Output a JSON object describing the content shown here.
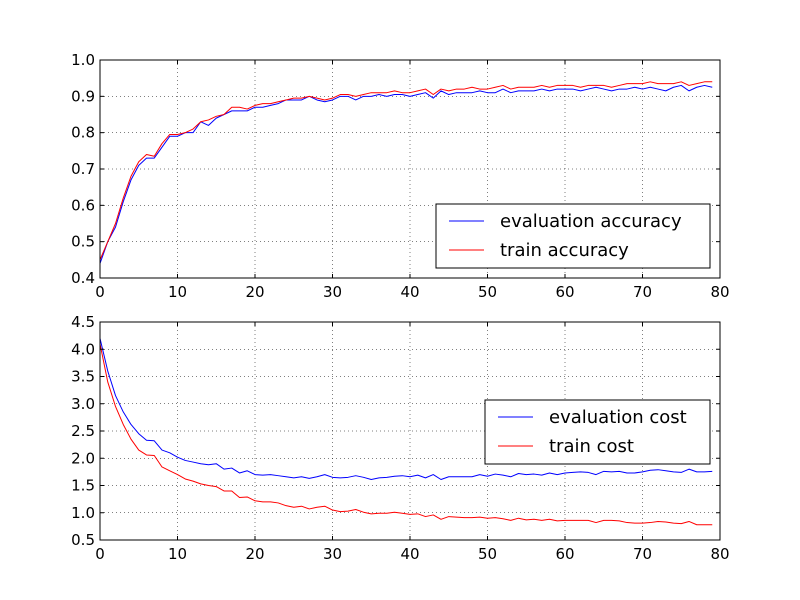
{
  "chart_data": [
    {
      "type": "line",
      "title": "",
      "xlabel": "",
      "ylabel": "",
      "xlim": [
        0,
        80
      ],
      "ylim": [
        0.4,
        1.0
      ],
      "xticks": [
        "0",
        "10",
        "20",
        "30",
        "40",
        "50",
        "60",
        "70",
        "80"
      ],
      "yticks": [
        "0.4",
        "0.5",
        "0.6",
        "0.7",
        "0.8",
        "0.9",
        "1.0"
      ],
      "grid": true,
      "legend_position": "lower-right",
      "series": [
        {
          "name": "evaluation accuracy",
          "color": "#0000ff",
          "x": [
            0,
            1,
            2,
            3,
            4,
            5,
            6,
            7,
            8,
            9,
            10,
            11,
            12,
            13,
            14,
            15,
            16,
            17,
            18,
            19,
            20,
            21,
            22,
            23,
            24,
            25,
            26,
            27,
            28,
            29,
            30,
            31,
            32,
            33,
            34,
            35,
            36,
            37,
            38,
            39,
            40,
            41,
            42,
            43,
            44,
            45,
            46,
            47,
            48,
            49,
            50,
            51,
            52,
            53,
            54,
            55,
            56,
            57,
            58,
            59,
            60,
            61,
            62,
            63,
            64,
            65,
            66,
            67,
            68,
            69,
            70,
            71,
            72,
            73,
            74,
            75,
            76,
            77,
            78,
            79
          ],
          "values": [
            0.44,
            0.5,
            0.54,
            0.61,
            0.67,
            0.71,
            0.73,
            0.73,
            0.76,
            0.79,
            0.79,
            0.8,
            0.8,
            0.83,
            0.82,
            0.84,
            0.85,
            0.86,
            0.86,
            0.86,
            0.87,
            0.87,
            0.875,
            0.88,
            0.89,
            0.89,
            0.89,
            0.9,
            0.89,
            0.885,
            0.89,
            0.9,
            0.9,
            0.89,
            0.9,
            0.9,
            0.905,
            0.9,
            0.905,
            0.905,
            0.9,
            0.905,
            0.91,
            0.895,
            0.915,
            0.905,
            0.91,
            0.91,
            0.91,
            0.915,
            0.91,
            0.91,
            0.92,
            0.91,
            0.915,
            0.915,
            0.915,
            0.92,
            0.915,
            0.92,
            0.92,
            0.92,
            0.915,
            0.92,
            0.925,
            0.92,
            0.915,
            0.92,
            0.92,
            0.925,
            0.92,
            0.925,
            0.92,
            0.915,
            0.925,
            0.93,
            0.915,
            0.925,
            0.93,
            0.925
          ]
        },
        {
          "name": "train accuracy",
          "color": "#ff0000",
          "x": [
            0,
            1,
            2,
            3,
            4,
            5,
            6,
            7,
            8,
            9,
            10,
            11,
            12,
            13,
            14,
            15,
            16,
            17,
            18,
            19,
            20,
            21,
            22,
            23,
            24,
            25,
            26,
            27,
            28,
            29,
            30,
            31,
            32,
            33,
            34,
            35,
            36,
            37,
            38,
            39,
            40,
            41,
            42,
            43,
            44,
            45,
            46,
            47,
            48,
            49,
            50,
            51,
            52,
            53,
            54,
            55,
            56,
            57,
            58,
            59,
            60,
            61,
            62,
            63,
            64,
            65,
            66,
            67,
            68,
            69,
            70,
            71,
            72,
            73,
            74,
            75,
            76,
            77,
            78,
            79
          ],
          "values": [
            0.45,
            0.5,
            0.55,
            0.62,
            0.68,
            0.72,
            0.74,
            0.735,
            0.77,
            0.795,
            0.795,
            0.8,
            0.81,
            0.83,
            0.835,
            0.845,
            0.85,
            0.87,
            0.87,
            0.865,
            0.875,
            0.88,
            0.88,
            0.885,
            0.89,
            0.895,
            0.895,
            0.9,
            0.895,
            0.89,
            0.895,
            0.905,
            0.905,
            0.9,
            0.905,
            0.91,
            0.91,
            0.91,
            0.915,
            0.91,
            0.91,
            0.915,
            0.92,
            0.905,
            0.92,
            0.915,
            0.92,
            0.92,
            0.925,
            0.92,
            0.92,
            0.925,
            0.93,
            0.92,
            0.925,
            0.925,
            0.925,
            0.93,
            0.925,
            0.93,
            0.93,
            0.93,
            0.925,
            0.93,
            0.93,
            0.93,
            0.925,
            0.93,
            0.935,
            0.935,
            0.935,
            0.94,
            0.935,
            0.935,
            0.935,
            0.94,
            0.93,
            0.935,
            0.94,
            0.94
          ]
        }
      ]
    },
    {
      "type": "line",
      "title": "",
      "xlabel": "",
      "ylabel": "",
      "xlim": [
        0,
        80
      ],
      "ylim": [
        0.5,
        4.5
      ],
      "xticks": [
        "0",
        "10",
        "20",
        "30",
        "40",
        "50",
        "60",
        "70",
        "80"
      ],
      "yticks": [
        "0.5",
        "1.0",
        "1.5",
        "2.0",
        "2.5",
        "3.0",
        "3.5",
        "4.0",
        "4.5"
      ],
      "grid": true,
      "legend_position": "upper-right",
      "series": [
        {
          "name": "evaluation cost",
          "color": "#0000ff",
          "x": [
            0,
            1,
            2,
            3,
            4,
            5,
            6,
            7,
            8,
            9,
            10,
            11,
            12,
            13,
            14,
            15,
            16,
            17,
            18,
            19,
            20,
            21,
            22,
            23,
            24,
            25,
            26,
            27,
            28,
            29,
            30,
            31,
            32,
            33,
            34,
            35,
            36,
            37,
            38,
            39,
            40,
            41,
            42,
            43,
            44,
            45,
            46,
            47,
            48,
            49,
            50,
            51,
            52,
            53,
            54,
            55,
            56,
            57,
            58,
            59,
            60,
            61,
            62,
            63,
            64,
            65,
            66,
            67,
            68,
            69,
            70,
            71,
            72,
            73,
            74,
            75,
            76,
            77,
            78,
            79
          ],
          "values": [
            4.2,
            3.6,
            3.15,
            2.85,
            2.62,
            2.45,
            2.33,
            2.32,
            2.15,
            2.1,
            2.02,
            1.96,
            1.93,
            1.9,
            1.88,
            1.9,
            1.8,
            1.82,
            1.73,
            1.77,
            1.7,
            1.69,
            1.7,
            1.68,
            1.66,
            1.64,
            1.66,
            1.63,
            1.66,
            1.7,
            1.65,
            1.64,
            1.65,
            1.68,
            1.65,
            1.61,
            1.64,
            1.65,
            1.67,
            1.68,
            1.66,
            1.69,
            1.64,
            1.7,
            1.61,
            1.66,
            1.66,
            1.66,
            1.66,
            1.7,
            1.67,
            1.71,
            1.69,
            1.66,
            1.72,
            1.7,
            1.71,
            1.69,
            1.73,
            1.7,
            1.73,
            1.74,
            1.75,
            1.74,
            1.7,
            1.76,
            1.75,
            1.76,
            1.73,
            1.73,
            1.75,
            1.78,
            1.79,
            1.77,
            1.75,
            1.74,
            1.8,
            1.75,
            1.75,
            1.76
          ]
        },
        {
          "name": "train cost",
          "color": "#ff0000",
          "x": [
            0,
            1,
            2,
            3,
            4,
            5,
            6,
            7,
            8,
            9,
            10,
            11,
            12,
            13,
            14,
            15,
            16,
            17,
            18,
            19,
            20,
            21,
            22,
            23,
            24,
            25,
            26,
            27,
            28,
            29,
            30,
            31,
            32,
            33,
            34,
            35,
            36,
            37,
            38,
            39,
            40,
            41,
            42,
            43,
            44,
            45,
            46,
            47,
            48,
            49,
            50,
            51,
            52,
            53,
            54,
            55,
            56,
            57,
            58,
            59,
            60,
            61,
            62,
            63,
            64,
            65,
            66,
            67,
            68,
            69,
            70,
            71,
            72,
            73,
            74,
            75,
            76,
            77,
            78,
            79
          ],
          "values": [
            4.1,
            3.4,
            2.95,
            2.62,
            2.35,
            2.15,
            2.06,
            2.05,
            1.84,
            1.77,
            1.7,
            1.62,
            1.58,
            1.53,
            1.5,
            1.48,
            1.4,
            1.4,
            1.28,
            1.29,
            1.22,
            1.2,
            1.2,
            1.18,
            1.13,
            1.1,
            1.12,
            1.07,
            1.1,
            1.12,
            1.05,
            1.02,
            1.03,
            1.06,
            1.01,
            0.98,
            0.99,
            0.99,
            1.01,
            0.99,
            0.97,
            0.98,
            0.93,
            0.96,
            0.88,
            0.93,
            0.92,
            0.91,
            0.91,
            0.92,
            0.9,
            0.91,
            0.89,
            0.86,
            0.9,
            0.87,
            0.88,
            0.86,
            0.88,
            0.85,
            0.86,
            0.86,
            0.86,
            0.86,
            0.82,
            0.86,
            0.86,
            0.85,
            0.82,
            0.81,
            0.81,
            0.82,
            0.84,
            0.83,
            0.81,
            0.8,
            0.84,
            0.78,
            0.78,
            0.78
          ]
        }
      ]
    }
  ]
}
